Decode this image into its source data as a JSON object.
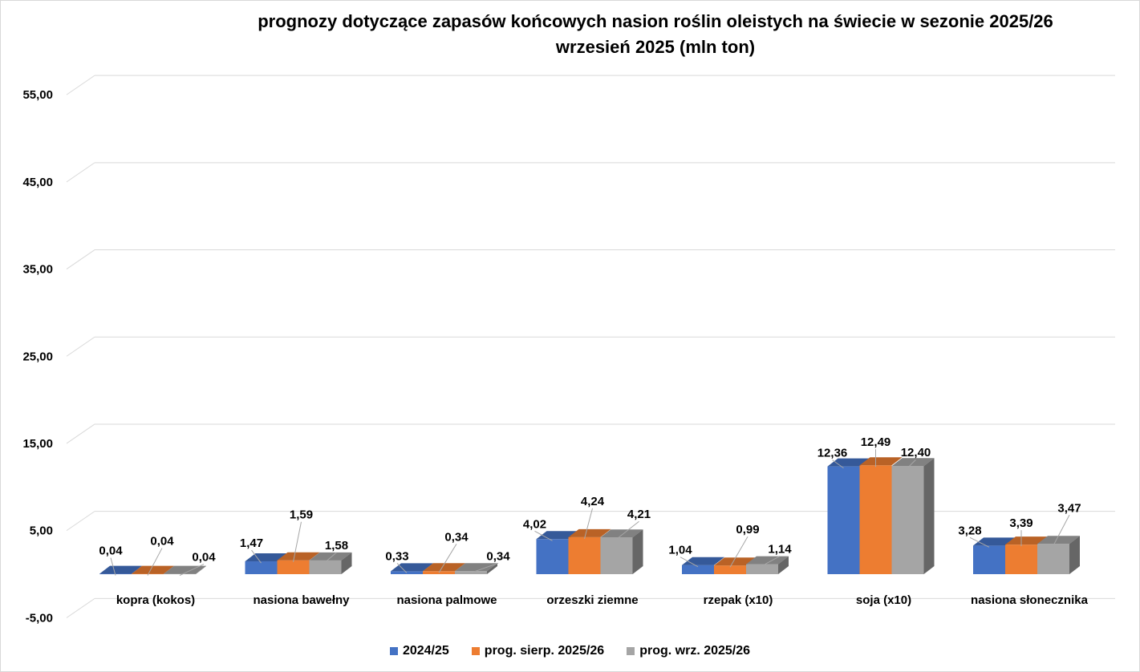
{
  "chart_data": {
    "type": "bar",
    "variant": "3d-clustered-column",
    "title": "prognozy dotyczące zapasów końcowych nasion roślin oleistych na świecie w sezonie 2025/26",
    "subtitle": "wrzesień 2025 (mln ton)",
    "xlabel": "",
    "ylabel": "",
    "ylim": [
      -5,
      55
    ],
    "yticks": [
      55,
      45,
      35,
      25,
      15,
      5,
      -5
    ],
    "ytick_labels": [
      "55,00",
      "45,00",
      "35,00",
      "25,00",
      "15,00",
      "5,00",
      "-5,00"
    ],
    "grid": true,
    "legend_position": "bottom",
    "categories": [
      "kopra (kokos)",
      "nasiona bawełny",
      "nasiona palmowe",
      "orzeszki ziemne",
      "rzepak (x10)",
      "soja (x10)",
      "nasiona słonecznika"
    ],
    "series": [
      {
        "name": "2024/25",
        "color": "#4472c4",
        "values": [
          0.04,
          1.47,
          0.33,
          4.02,
          1.04,
          12.36,
          3.28
        ],
        "labels": [
          "0,04",
          "1,47",
          "0,33",
          "4,02",
          "1,04",
          "12,36",
          "3,28"
        ]
      },
      {
        "name": "prog. sierp. 2025/26",
        "color": "#ed7d31",
        "values": [
          0.04,
          1.59,
          0.34,
          4.24,
          0.99,
          12.49,
          3.39
        ],
        "labels": [
          "0,04",
          "1,59",
          "0,34",
          "4,24",
          "0,99",
          "12,49",
          "3,39"
        ]
      },
      {
        "name": "prog. wrz. 2025/26",
        "color": "#a5a5a5",
        "values": [
          0.04,
          1.58,
          0.34,
          4.21,
          1.14,
          12.4,
          3.47
        ],
        "labels": [
          "0,04",
          "1,58",
          "0,34",
          "4,21",
          "1,14",
          "12,40",
          "3,47"
        ]
      }
    ]
  }
}
